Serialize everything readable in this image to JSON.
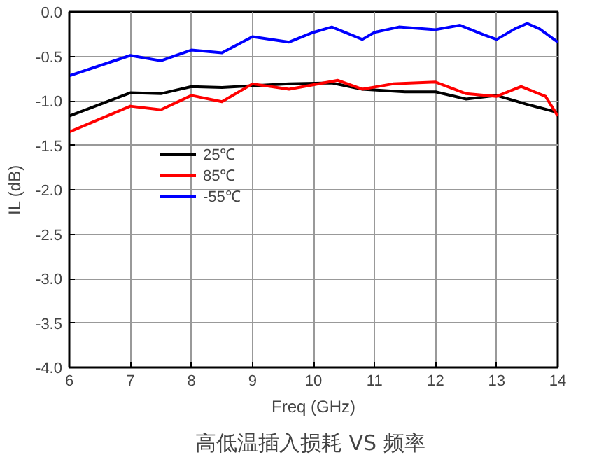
{
  "chart_data": {
    "type": "line",
    "title": "高低温插入损耗  VS 频率",
    "xlabel": "Freq (GHz)",
    "ylabel": "IL (dB)",
    "xlim": [
      6,
      14
    ],
    "ylim": [
      -4,
      0
    ],
    "xticks": [
      6,
      7,
      8,
      9,
      10,
      11,
      12,
      13,
      14
    ],
    "yticks": [
      {
        "value": 0,
        "label": "0.0"
      },
      {
        "value": -0.5,
        "label": "-0.5"
      },
      {
        "value": -1,
        "label": "-1.0"
      },
      {
        "value": -1.5,
        "label": "-1.5"
      },
      {
        "value": -2,
        "label": "-2.0"
      },
      {
        "value": -2.5,
        "label": "-2.5"
      },
      {
        "value": -3,
        "label": "-3.0"
      },
      {
        "value": -3.5,
        "label": "-3.5"
      },
      {
        "value": -4,
        "label": "-4.0"
      }
    ],
    "grid": true,
    "legend": "left",
    "line_style": "solid",
    "series": [
      {
        "name": "25℃",
        "color": "#000000",
        "x": [
          6,
          7,
          7.5,
          8,
          8.5,
          9,
          9.6,
          10.3,
          10.8,
          11.5,
          12,
          12.5,
          13,
          13.5,
          14
        ],
        "values": [
          -1.17,
          -0.91,
          -0.92,
          -0.84,
          -0.85,
          -0.83,
          -0.81,
          -0.8,
          -0.87,
          -0.9,
          -0.9,
          -0.98,
          -0.94,
          -1.04,
          -1.13
        ]
      },
      {
        "name": "85℃",
        "color": "#ff0000",
        "x": [
          6,
          7,
          7.5,
          8,
          8.5,
          9,
          9.6,
          10.4,
          10.8,
          11.3,
          12,
          12.5,
          13,
          13.4,
          13.8,
          14
        ],
        "values": [
          -1.35,
          -1.06,
          -1.1,
          -0.94,
          -1.01,
          -0.81,
          -0.87,
          -0.77,
          -0.87,
          -0.81,
          -0.79,
          -0.92,
          -0.95,
          -0.84,
          -0.95,
          -1.17
        ]
      },
      {
        "name": "-55℃",
        "color": "#0000ff",
        "x": [
          6,
          7,
          7.5,
          8,
          8.5,
          9,
          9.6,
          10,
          10.3,
          10.8,
          11,
          11.4,
          12,
          12.4,
          12.8,
          13,
          13.3,
          13.5,
          13.7,
          14
        ],
        "values": [
          -0.72,
          -0.49,
          -0.55,
          -0.43,
          -0.46,
          -0.28,
          -0.34,
          -0.23,
          -0.17,
          -0.31,
          -0.23,
          -0.17,
          -0.2,
          -0.15,
          -0.26,
          -0.31,
          -0.19,
          -0.13,
          -0.19,
          -0.34
        ]
      }
    ]
  }
}
